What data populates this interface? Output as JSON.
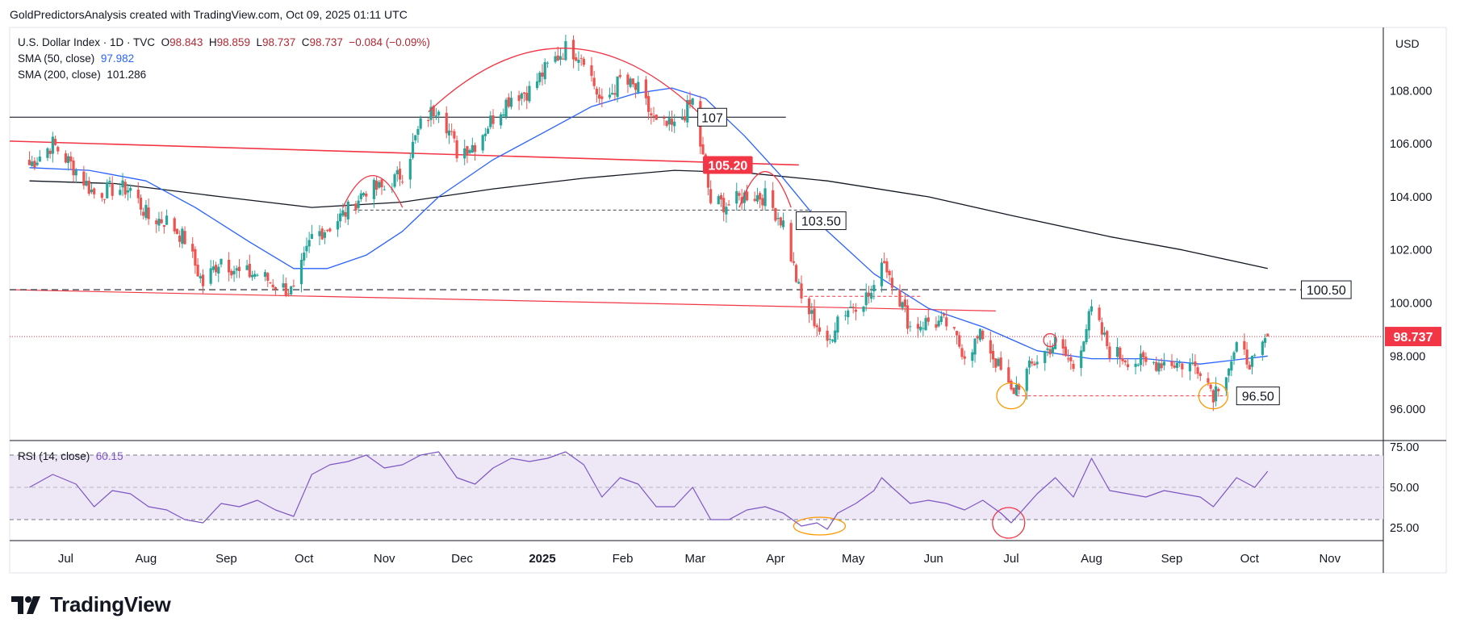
{
  "header": {
    "text": "GoldPredictorsAnalysis created with TradingView.com, Oct 09, 2025 01:11 UTC"
  },
  "legend": {
    "symbol": "U.S. Dollar Index · 1D · TVC",
    "open_label": "O",
    "open": "98.843",
    "high_label": "H",
    "high": "98.859",
    "low_label": "L",
    "low": "98.737",
    "close_label": "C",
    "close": "98.737",
    "change": "−0.084 (−0.09%)",
    "sma50_label": "SMA (50, close)",
    "sma50_value": "97.982",
    "sma200_label": "SMA (200, close)",
    "sma200_value": "101.286"
  },
  "rsi_legend": {
    "label": "RSI (14, close)",
    "value": "60.15"
  },
  "brand": {
    "name": "TradingView"
  },
  "colors": {
    "up": "#26a69a",
    "down": "#ef5350",
    "sma50": "#2962ff",
    "sma200": "#131722",
    "rsi": "#7e57c2",
    "rsi_band": "#ede7f6",
    "annot_red": "#f23645",
    "annot_orange": "#ff9800",
    "price_tag": "#f23645"
  },
  "chart_data": [
    {
      "type": "candlestick",
      "title": "U.S. Dollar Index · 1D · TVC",
      "currency": "USD",
      "ylim": [
        95.0,
        110.2
      ],
      "y_ticks": [
        "96.000",
        "98.000",
        "100.000",
        "102.000",
        "104.000",
        "106.000",
        "108.000"
      ],
      "x_ticks": [
        "Jul",
        "Aug",
        "Sep",
        "Oct",
        "Nov",
        "Dec",
        "2025",
        "Feb",
        "Mar",
        "Apr",
        "May",
        "Jun",
        "Jul",
        "Aug",
        "Sep",
        "Oct",
        "Nov"
      ],
      "last_price": "98.737",
      "close_path": [
        [
          "2024-06-17",
          105.2
        ],
        [
          "2024-06-26",
          106.0
        ],
        [
          "2024-07-05",
          105.0
        ],
        [
          "2024-07-12",
          104.1
        ],
        [
          "2024-07-19",
          104.3
        ],
        [
          "2024-07-26",
          104.3
        ],
        [
          "2024-08-02",
          103.2
        ],
        [
          "2024-08-09",
          103.1
        ],
        [
          "2024-08-16",
          102.4
        ],
        [
          "2024-08-23",
          100.7
        ],
        [
          "2024-08-30",
          101.7
        ],
        [
          "2024-09-06",
          101.1
        ],
        [
          "2024-09-13",
          101.1
        ],
        [
          "2024-09-20",
          100.7
        ],
        [
          "2024-09-27",
          100.4
        ],
        [
          "2024-10-04",
          102.5
        ],
        [
          "2024-10-11",
          102.9
        ],
        [
          "2024-10-18",
          103.5
        ],
        [
          "2024-10-25",
          104.3
        ],
        [
          "2024-11-01",
          104.3
        ],
        [
          "2024-11-08",
          104.9
        ],
        [
          "2024-11-15",
          106.7
        ],
        [
          "2024-11-22",
          107.5
        ],
        [
          "2024-11-29",
          105.7
        ],
        [
          "2024-12-06",
          106.0
        ],
        [
          "2024-12-13",
          107.0
        ],
        [
          "2024-12-20",
          107.8
        ],
        [
          "2024-12-27",
          108.0
        ],
        [
          "2025-01-03",
          108.9
        ],
        [
          "2025-01-10",
          109.6
        ],
        [
          "2025-01-17",
          109.3
        ],
        [
          "2025-01-24",
          107.4
        ],
        [
          "2025-01-31",
          108.4
        ],
        [
          "2025-02-07",
          108.0
        ],
        [
          "2025-02-14",
          106.7
        ],
        [
          "2025-02-21",
          106.6
        ],
        [
          "2025-02-28",
          107.6
        ],
        [
          "2025-03-07",
          103.8
        ],
        [
          "2025-03-14",
          103.7
        ],
        [
          "2025-03-21",
          104.1
        ],
        [
          "2025-03-28",
          104.0
        ],
        [
          "2025-04-04",
          103.0
        ],
        [
          "2025-04-11",
          100.1
        ],
        [
          "2025-04-17",
          99.2
        ],
        [
          "2025-04-21",
          98.3
        ],
        [
          "2025-04-25",
          99.5
        ],
        [
          "2025-05-02",
          100.0
        ],
        [
          "2025-05-09",
          100.4
        ],
        [
          "2025-05-12",
          101.8
        ],
        [
          "2025-05-16",
          100.9
        ],
        [
          "2025-05-23",
          99.1
        ],
        [
          "2025-05-30",
          99.3
        ],
        [
          "2025-06-06",
          99.2
        ],
        [
          "2025-06-13",
          98.1
        ],
        [
          "2025-06-20",
          98.8
        ],
        [
          "2025-06-27",
          97.4
        ],
        [
          "2025-07-01",
          96.6
        ],
        [
          "2025-07-11",
          97.9
        ],
        [
          "2025-07-18",
          98.5
        ],
        [
          "2025-07-25",
          97.6
        ],
        [
          "2025-08-01",
          99.7
        ],
        [
          "2025-08-08",
          98.2
        ],
        [
          "2025-08-15",
          97.9
        ],
        [
          "2025-08-22",
          97.7
        ],
        [
          "2025-08-29",
          97.8
        ],
        [
          "2025-09-05",
          97.7
        ],
        [
          "2025-09-12",
          97.6
        ],
        [
          "2025-09-17",
          96.6
        ],
        [
          "2025-09-26",
          98.2
        ],
        [
          "2025-10-03",
          97.7
        ],
        [
          "2025-10-08",
          98.7
        ]
      ],
      "sma_50": [
        [
          "2024-06-17",
          105.1
        ],
        [
          "2024-07-10",
          105.0
        ],
        [
          "2024-08-01",
          104.6
        ],
        [
          "2024-08-20",
          103.6
        ],
        [
          "2024-09-10",
          102.3
        ],
        [
          "2024-09-27",
          101.3
        ],
        [
          "2024-10-10",
          101.3
        ],
        [
          "2024-10-25",
          101.8
        ],
        [
          "2024-11-08",
          102.7
        ],
        [
          "2024-11-22",
          104.0
        ],
        [
          "2024-12-13",
          105.4
        ],
        [
          "2025-01-03",
          106.5
        ],
        [
          "2025-01-20",
          107.4
        ],
        [
          "2025-02-06",
          107.9
        ],
        [
          "2025-02-20",
          108.1
        ],
        [
          "2025-03-05",
          107.7
        ],
        [
          "2025-03-20",
          106.3
        ],
        [
          "2025-04-04",
          104.7
        ],
        [
          "2025-04-20",
          102.8
        ],
        [
          "2025-05-09",
          101.1
        ],
        [
          "2025-05-30",
          99.8
        ],
        [
          "2025-06-20",
          99.1
        ],
        [
          "2025-07-11",
          98.2
        ],
        [
          "2025-08-01",
          97.9
        ],
        [
          "2025-08-22",
          97.9
        ],
        [
          "2025-09-12",
          97.7
        ],
        [
          "2025-10-08",
          98.0
        ]
      ],
      "sma_200": [
        [
          "2024-06-17",
          104.6
        ],
        [
          "2024-07-20",
          104.5
        ],
        [
          "2024-08-30",
          104.0
        ],
        [
          "2024-10-04",
          103.6
        ],
        [
          "2024-11-08",
          103.8
        ],
        [
          "2024-12-13",
          104.3
        ],
        [
          "2025-01-17",
          104.7
        ],
        [
          "2025-02-21",
          105.0
        ],
        [
          "2025-03-21",
          104.9
        ],
        [
          "2025-04-21",
          104.6
        ],
        [
          "2025-05-30",
          104.0
        ],
        [
          "2025-07-01",
          103.3
        ],
        [
          "2025-08-08",
          102.5
        ],
        [
          "2025-09-05",
          102.0
        ],
        [
          "2025-10-08",
          101.3
        ]
      ],
      "annotations": {
        "levels": [
          {
            "label": "107",
            "value": 107.0
          },
          {
            "label": "105.20",
            "value": 105.2
          },
          {
            "label": "103.50",
            "value": 103.5
          },
          {
            "label": "100.50",
            "value": 100.5
          },
          {
            "label": "96.50",
            "value": 96.5
          }
        ]
      }
    },
    {
      "type": "line",
      "title": "RSI (14, close)",
      "ylim": [
        18,
        78
      ],
      "y_ticks": [
        "25.00",
        "50.00",
        "75.00"
      ],
      "band": [
        30,
        70
      ],
      "midline": 50,
      "values": [
        [
          "2024-06-17",
          50
        ],
        [
          "2024-06-26",
          58
        ],
        [
          "2024-07-05",
          52
        ],
        [
          "2024-07-12",
          38
        ],
        [
          "2024-07-19",
          48
        ],
        [
          "2024-07-26",
          46
        ],
        [
          "2024-08-02",
          38
        ],
        [
          "2024-08-09",
          36
        ],
        [
          "2024-08-16",
          30
        ],
        [
          "2024-08-23",
          28
        ],
        [
          "2024-08-30",
          40
        ],
        [
          "2024-09-06",
          38
        ],
        [
          "2024-09-13",
          42
        ],
        [
          "2024-09-20",
          36
        ],
        [
          "2024-09-27",
          32
        ],
        [
          "2024-10-04",
          58
        ],
        [
          "2024-10-11",
          64
        ],
        [
          "2024-10-18",
          66
        ],
        [
          "2024-10-25",
          70
        ],
        [
          "2024-11-01",
          62
        ],
        [
          "2024-11-08",
          64
        ],
        [
          "2024-11-15",
          70
        ],
        [
          "2024-11-22",
          72
        ],
        [
          "2024-11-29",
          56
        ],
        [
          "2024-12-06",
          52
        ],
        [
          "2024-12-13",
          62
        ],
        [
          "2024-12-20",
          68
        ],
        [
          "2024-12-27",
          66
        ],
        [
          "2025-01-03",
          68
        ],
        [
          "2025-01-10",
          72
        ],
        [
          "2025-01-17",
          64
        ],
        [
          "2025-01-24",
          44
        ],
        [
          "2025-01-31",
          56
        ],
        [
          "2025-02-07",
          52
        ],
        [
          "2025-02-14",
          38
        ],
        [
          "2025-02-21",
          38
        ],
        [
          "2025-02-28",
          50
        ],
        [
          "2025-03-07",
          30
        ],
        [
          "2025-03-14",
          30
        ],
        [
          "2025-03-21",
          36
        ],
        [
          "2025-03-28",
          38
        ],
        [
          "2025-04-04",
          34
        ],
        [
          "2025-04-11",
          26
        ],
        [
          "2025-04-17",
          28
        ],
        [
          "2025-04-21",
          24
        ],
        [
          "2025-04-25",
          34
        ],
        [
          "2025-05-02",
          40
        ],
        [
          "2025-05-09",
          48
        ],
        [
          "2025-05-12",
          56
        ],
        [
          "2025-05-16",
          50
        ],
        [
          "2025-05-23",
          40
        ],
        [
          "2025-05-30",
          42
        ],
        [
          "2025-06-06",
          40
        ],
        [
          "2025-06-13",
          36
        ],
        [
          "2025-06-20",
          42
        ],
        [
          "2025-06-27",
          34
        ],
        [
          "2025-07-01",
          28
        ],
        [
          "2025-07-11",
          46
        ],
        [
          "2025-07-18",
          56
        ],
        [
          "2025-07-25",
          44
        ],
        [
          "2025-08-01",
          68
        ],
        [
          "2025-08-08",
          48
        ],
        [
          "2025-08-15",
          46
        ],
        [
          "2025-08-22",
          44
        ],
        [
          "2025-08-29",
          48
        ],
        [
          "2025-09-05",
          46
        ],
        [
          "2025-09-12",
          44
        ],
        [
          "2025-09-17",
          38
        ],
        [
          "2025-09-26",
          56
        ],
        [
          "2025-10-03",
          50
        ],
        [
          "2025-10-08",
          60
        ]
      ]
    }
  ]
}
